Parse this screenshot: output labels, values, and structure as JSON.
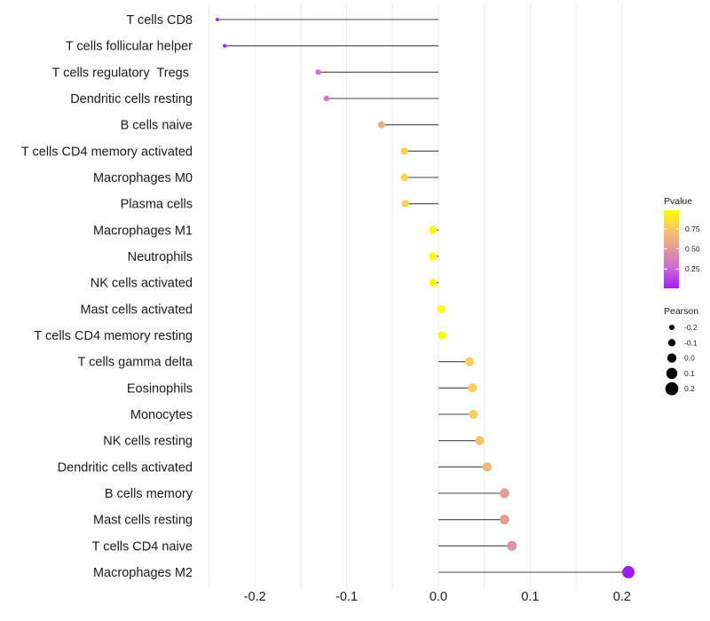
{
  "chart_data": {
    "type": "scatter",
    "subtype": "lollipop",
    "title": "",
    "xlabel": "",
    "ylabel": "",
    "xlim": [
      -0.25,
      0.22
    ],
    "x_ticks": [
      -0.2,
      -0.1,
      0.0,
      0.1,
      0.2
    ],
    "x_tick_labels": [
      "-0.2",
      "-0.1",
      "0.0",
      "0.1",
      "0.2"
    ],
    "grid": true,
    "categories": [
      "T cells CD8",
      "T cells follicular helper",
      "T cells regulatory  Tregs ",
      "Dendritic cells resting",
      "B cells naive",
      "T cells CD4 memory activated",
      "Macrophages M0",
      "Plasma cells",
      "Macrophages M1",
      "Neutrophils",
      "NK cells activated",
      "Mast cells activated",
      "T cells CD4 memory resting",
      "T cells gamma delta",
      "Eosinophils",
      "Monocytes",
      "NK cells resting",
      "Dendritic cells activated",
      "B cells memory",
      "Mast cells resting",
      "T cells CD4 naive",
      "Macrophages M2"
    ],
    "pearson": [
      -0.241,
      -0.233,
      -0.131,
      -0.122,
      -0.062,
      -0.037,
      -0.037,
      -0.036,
      -0.006,
      -0.006,
      -0.006,
      0.003,
      0.004,
      0.034,
      0.037,
      0.038,
      0.045,
      0.053,
      0.072,
      0.072,
      0.08,
      0.207
    ],
    "pvalue": [
      0.02,
      0.03,
      0.3,
      0.33,
      0.62,
      0.8,
      0.8,
      0.79,
      0.96,
      0.96,
      0.96,
      0.98,
      0.97,
      0.79,
      0.78,
      0.77,
      0.72,
      0.67,
      0.52,
      0.52,
      0.47,
      0.01
    ],
    "legend": {
      "placement": "right",
      "color": {
        "title": "Pvalue",
        "ticks": [
          0.25,
          0.5,
          0.75
        ],
        "tick_labels": [
          "0.25",
          "0.50",
          "0.75"
        ],
        "range": [
          0.01,
          0.98
        ],
        "low_color": "#9B1FF0",
        "high_color": "#FFFF00"
      },
      "size": {
        "title": "Pearson",
        "values": [
          -0.2,
          -0.1,
          0.0,
          0.1,
          0.2
        ],
        "labels": [
          "-0.2",
          "-0.1",
          "0.0",
          "0.1",
          "0.2"
        ]
      }
    }
  }
}
